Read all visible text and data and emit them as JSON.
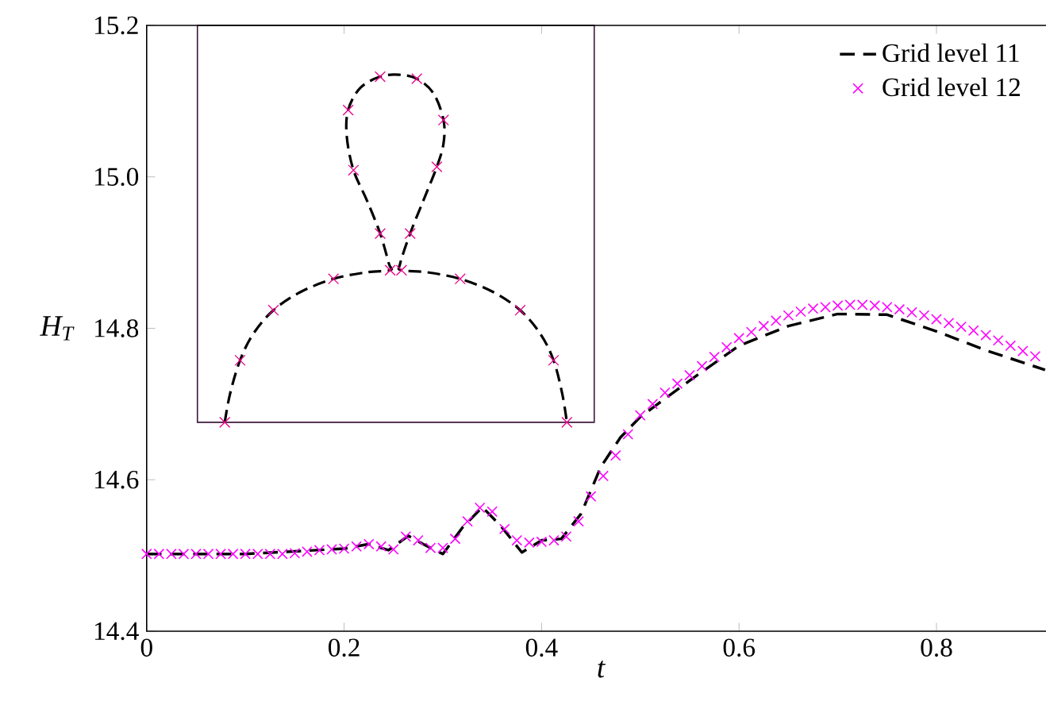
{
  "chart_data": {
    "type": "line",
    "xlabel": "t",
    "ylabel": "H$_{T}$",
    "xlim": [
      0,
      0.92
    ],
    "ylim": [
      14.4,
      15.2
    ],
    "xticks": [
      0,
      0.2,
      0.4,
      0.6,
      0.8
    ],
    "yticks": [
      14.4,
      14.6,
      14.8,
      {
        "value": 15,
        "label": "15.0"
      },
      15.2
    ],
    "grid": false,
    "legend": "top right",
    "series": [
      {
        "name": "Grid level 11",
        "color": "#000000",
        "marker": "none",
        "line_style": "dashed",
        "x": [
          0,
          0.1,
          0.2,
          0.225,
          0.245,
          0.265,
          0.28,
          0.3,
          0.32,
          0.34,
          0.36,
          0.38,
          0.4,
          0.42,
          0.44,
          0.46,
          0.48,
          0.5,
          0.55,
          0.6,
          0.65,
          0.7,
          0.75,
          0.8,
          0.85,
          0.91
        ],
        "values": [
          14.502,
          14.502,
          14.509,
          14.515,
          14.507,
          14.526,
          14.515,
          14.502,
          14.537,
          14.564,
          14.537,
          14.504,
          14.52,
          14.522,
          14.555,
          14.617,
          14.656,
          14.683,
          14.731,
          14.777,
          14.803,
          14.819,
          14.818,
          14.796,
          14.771,
          14.745
        ]
      },
      {
        "name": "Grid level 12",
        "type": "scatter",
        "color": "#ff00ff",
        "marker": "cross",
        "x": [
          0,
          0.0125,
          0.025,
          0.0375,
          0.05,
          0.0625,
          0.075,
          0.0875,
          0.1,
          0.1125,
          0.125,
          0.1375,
          0.15,
          0.1625,
          0.175,
          0.1875,
          0.2,
          0.2125,
          0.225,
          0.2375,
          0.25,
          0.2625,
          0.275,
          0.2875,
          0.3,
          0.3125,
          0.325,
          0.3375,
          0.35,
          0.3625,
          0.375,
          0.3875,
          0.4,
          0.4125,
          0.425,
          0.4375,
          0.45,
          0.4625,
          0.475,
          0.4875,
          0.5,
          0.5125,
          0.525,
          0.5375,
          0.55,
          0.5625,
          0.575,
          0.5875,
          0.6,
          0.6125,
          0.625,
          0.6375,
          0.65,
          0.6625,
          0.675,
          0.6875,
          0.7,
          0.7125,
          0.725,
          0.7375,
          0.75,
          0.7625,
          0.775,
          0.7875,
          0.8,
          0.8125,
          0.825,
          0.8375,
          0.85,
          0.8625,
          0.875,
          0.8875,
          0.9
        ],
        "values": [
          14.502,
          14.502,
          14.502,
          14.502,
          14.502,
          14.502,
          14.502,
          14.502,
          14.502,
          14.502,
          14.502,
          14.502,
          14.503,
          14.505,
          14.507,
          14.508,
          14.509,
          14.512,
          14.515,
          14.512,
          14.508,
          14.525,
          14.52,
          14.51,
          14.51,
          14.522,
          14.545,
          14.563,
          14.558,
          14.535,
          14.52,
          14.517,
          14.518,
          14.52,
          14.525,
          14.545,
          14.578,
          14.605,
          14.632,
          14.66,
          14.685,
          14.7,
          14.715,
          14.727,
          14.738,
          14.75,
          14.762,
          14.775,
          14.787,
          14.795,
          14.803,
          14.81,
          14.817,
          14.822,
          14.826,
          14.828,
          14.83,
          14.831,
          14.831,
          14.83,
          14.828,
          14.825,
          14.821,
          14.817,
          14.812,
          14.807,
          14.802,
          14.797,
          14.791,
          14.784,
          14.777,
          14.77,
          14.763
        ]
      }
    ]
  }
}
